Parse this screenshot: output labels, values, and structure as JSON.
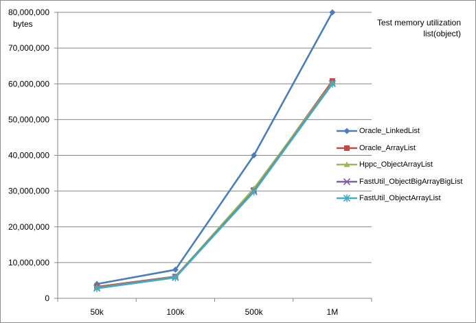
{
  "chart_data": {
    "type": "line",
    "title": "Test  memory utilization\nlist(object)",
    "ylabel": "bytes",
    "xlabel": "",
    "categories": [
      "50k",
      "100k",
      "500k",
      "1M"
    ],
    "ylim": [
      0,
      80000000
    ],
    "yticks": [
      0,
      10000000,
      20000000,
      30000000,
      40000000,
      50000000,
      60000000,
      70000000,
      80000000
    ],
    "ytick_labels": [
      "0",
      "10,000,000",
      "20,000,000",
      "30,000,000",
      "40,000,000",
      "50,000,000",
      "60,000,000",
      "70,000,000",
      "80,000,000"
    ],
    "grid": true,
    "legend_position": "right",
    "series": [
      {
        "name": "Oracle_LinkedList",
        "color": "#4a7ebb",
        "marker": "diamond",
        "values": [
          4000000,
          8000000,
          40000000,
          80000000
        ]
      },
      {
        "name": "Oracle_ArrayList",
        "color": "#be4b48",
        "marker": "square",
        "values": [
          3200000,
          6100000,
          30300000,
          60800000
        ]
      },
      {
        "name": "Hppc_ObjectArrayList",
        "color": "#98b954",
        "marker": "triangle",
        "values": [
          3000000,
          6000000,
          30700000,
          60300000
        ]
      },
      {
        "name": "FastUtil_ObjectBigArrayBigList",
        "color": "#7d60a0",
        "marker": "x",
        "values": [
          2900000,
          5900000,
          30000000,
          60100000
        ]
      },
      {
        "name": "FastUtil_ObjectArrayList",
        "color": "#46aac5",
        "marker": "star",
        "values": [
          2800000,
          5800000,
          29800000,
          60000000
        ]
      }
    ]
  }
}
